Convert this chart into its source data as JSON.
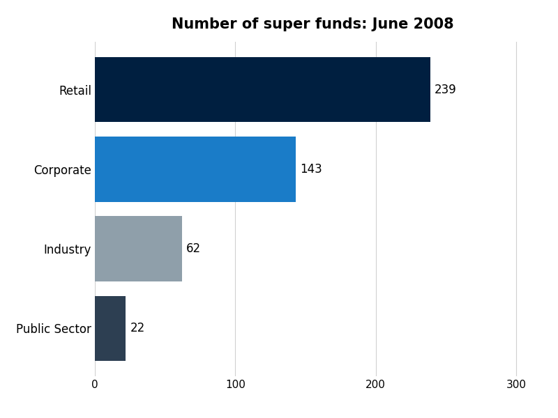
{
  "title": "Number of super funds: June 2008",
  "categories": [
    "Public Sector",
    "Industry",
    "Corporate",
    "Retail"
  ],
  "values": [
    22,
    62,
    143,
    239
  ],
  "bar_colors": [
    "#2d3f52",
    "#8f9faa",
    "#1a7cc8",
    "#001f40"
  ],
  "label_color": "#000000",
  "xlim": [
    0,
    310
  ],
  "xticks": [
    0,
    100,
    200,
    300
  ],
  "background_color": "#ffffff",
  "title_fontsize": 15,
  "label_fontsize": 12,
  "tick_fontsize": 11,
  "bar_height": 0.82
}
